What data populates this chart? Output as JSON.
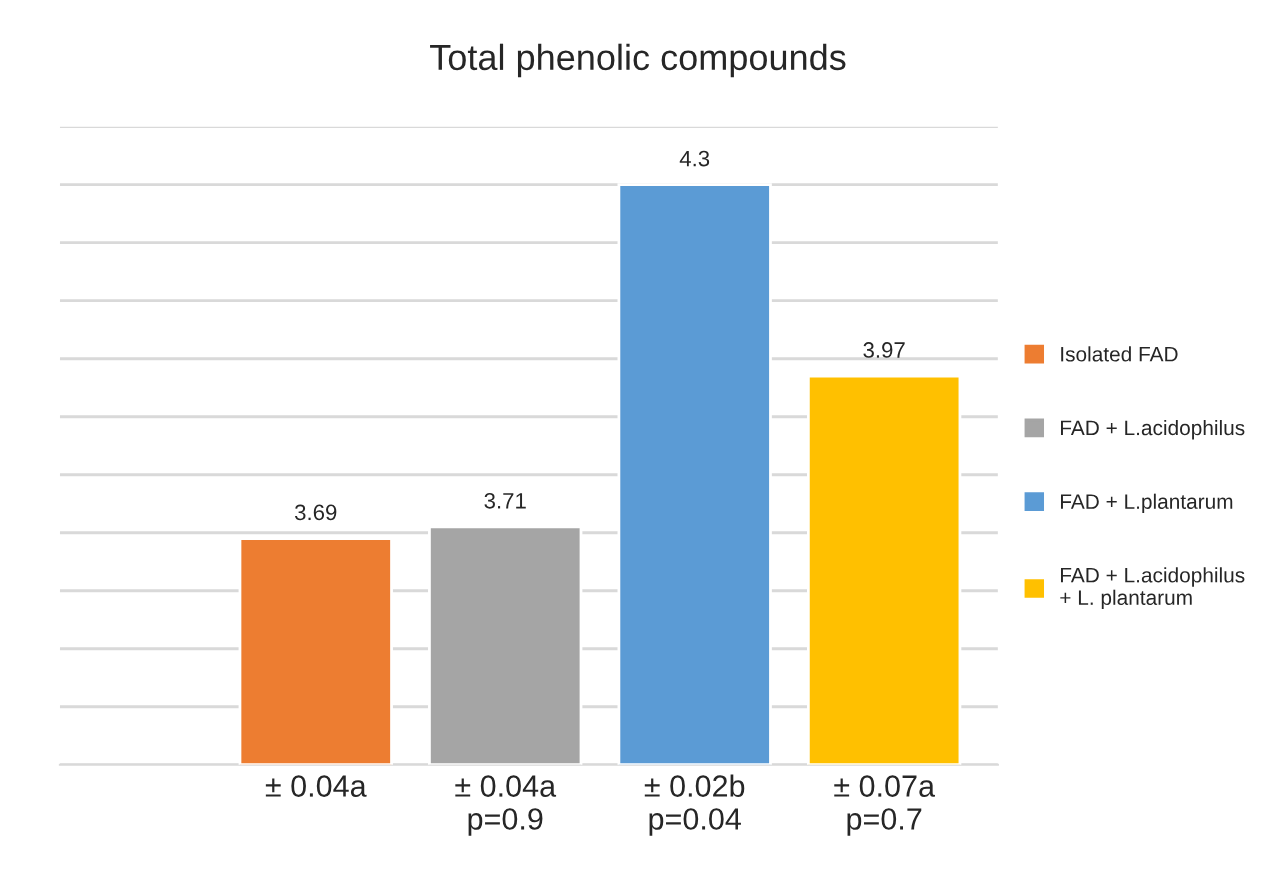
{
  "chart_data": {
    "type": "bar",
    "title": "Total phenolic compounds",
    "categories": [
      "± 0.04a",
      "± 0.04a\np=0.9",
      "± 0.02b\np=0.04",
      "± 0.07a\np=0.7"
    ],
    "series": [
      {
        "name": "Isolated FAD",
        "color": "#ed7d31",
        "values": [
          3.69,
          null,
          null,
          null
        ]
      },
      {
        "name": "FAD + L.acidophilus",
        "color": "#a5a5a5",
        "values": [
          null,
          3.71,
          null,
          null
        ]
      },
      {
        "name": "FAD + L.plantarum",
        "color": "#5b9bd5",
        "values": [
          null,
          null,
          4.3,
          null
        ]
      },
      {
        "name": "FAD + L.acidophilus\n+ L. plantarum",
        "color": "#ffc000",
        "values": [
          null,
          null,
          null,
          3.97
        ]
      }
    ],
    "ylim": [
      3.3,
      4.4
    ],
    "yticks": [
      {
        "value": 3.3,
        "label": null
      },
      {
        "value": 3.4,
        "label": null
      },
      {
        "value": 3.5,
        "label": null
      },
      {
        "value": 3.6,
        "label": null
      },
      {
        "value": 3.7,
        "label": null
      },
      {
        "value": 3.8,
        "label": null
      },
      {
        "value": 3.9,
        "label": null
      },
      {
        "value": 4.0,
        "label": null
      },
      {
        "value": 4.1,
        "label": null
      },
      {
        "value": 4.2,
        "label": null
      },
      {
        "value": 4.3,
        "label": null
      },
      {
        "value": 4.4,
        "label": null
      }
    ],
    "data_labels": true,
    "grid": "y",
    "legend": "right",
    "tick_labels": "x"
  }
}
